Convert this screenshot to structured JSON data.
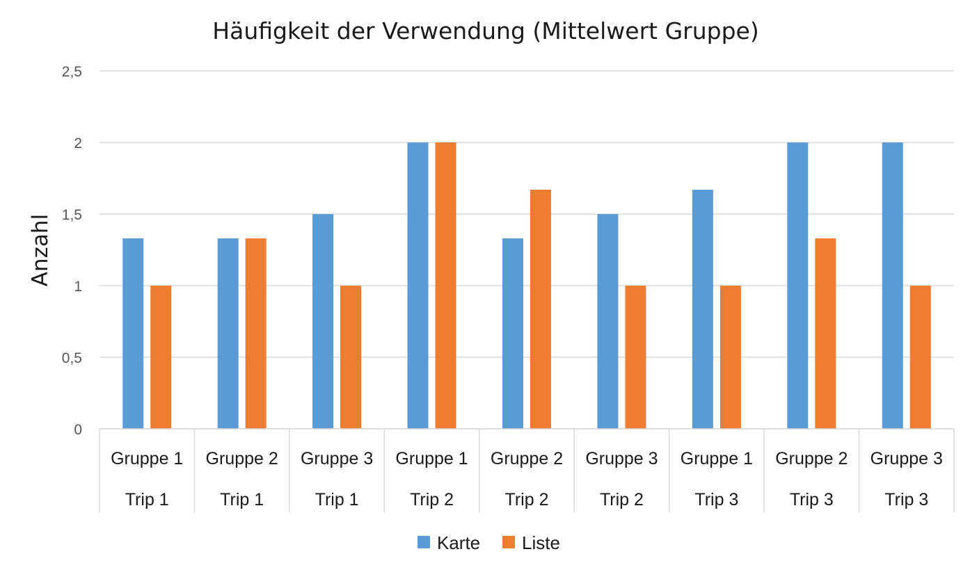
{
  "chart_data": {
    "type": "bar",
    "title": "Häufigkeit der Verwendung (Mittelwert Gruppe)",
    "xlabel": "",
    "ylabel": "Anzahl",
    "ylim": [
      0,
      2.5
    ],
    "yticks": [
      "0",
      "0,5",
      "1",
      "1,5",
      "2",
      "2,5"
    ],
    "ytick_values": [
      0,
      0.5,
      1,
      1.5,
      2,
      2.5
    ],
    "grid": true,
    "legend_position": "bottom",
    "categories": [
      {
        "group": "Gruppe 1",
        "trip": "Trip 1"
      },
      {
        "group": "Gruppe 2",
        "trip": "Trip 1"
      },
      {
        "group": "Gruppe 3",
        "trip": "Trip 1"
      },
      {
        "group": "Gruppe 1",
        "trip": "Trip 2"
      },
      {
        "group": "Gruppe 2",
        "trip": "Trip 2"
      },
      {
        "group": "Gruppe 3",
        "trip": "Trip 2"
      },
      {
        "group": "Gruppe 1",
        "trip": "Trip 3"
      },
      {
        "group": "Gruppe 2",
        "trip": "Trip 3"
      },
      {
        "group": "Gruppe 3",
        "trip": "Trip 3"
      }
    ],
    "series": [
      {
        "name": "Karte",
        "color": "#5b9bd5",
        "values": [
          1.33,
          1.33,
          1.5,
          2,
          1.33,
          1.5,
          1.67,
          2,
          2
        ]
      },
      {
        "name": "Liste",
        "color": "#ed7d31",
        "values": [
          1,
          1.33,
          1,
          2,
          1.67,
          1,
          1,
          1.33,
          1
        ]
      }
    ]
  }
}
